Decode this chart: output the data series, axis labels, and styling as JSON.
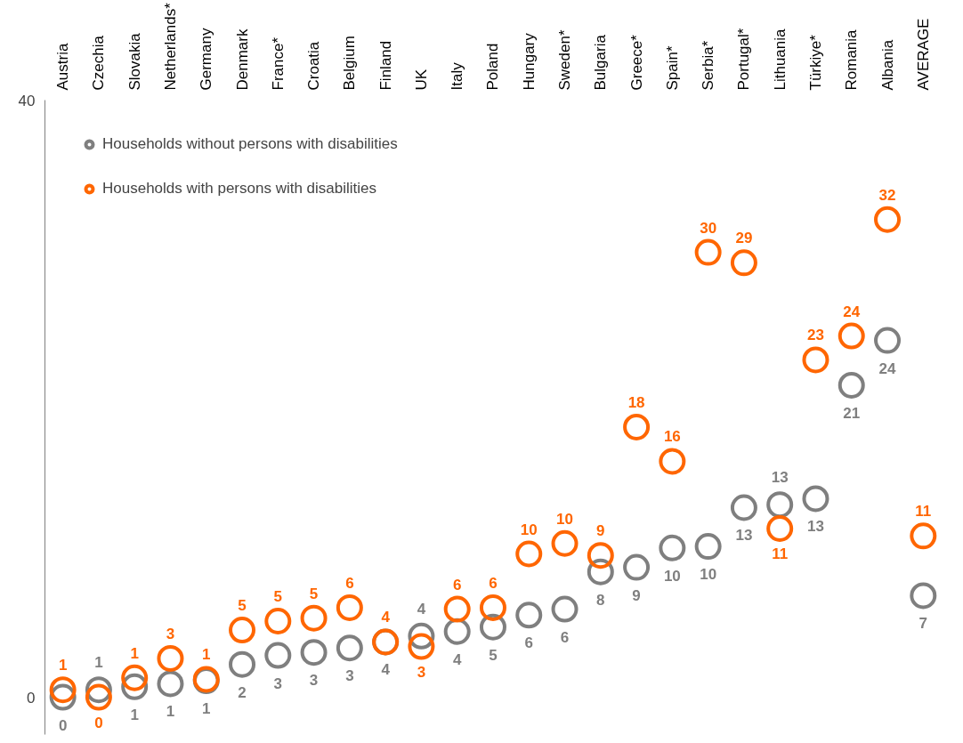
{
  "chart_data": {
    "type": "scatter",
    "categories": [
      "Austria",
      "Czechia",
      "Slovakia",
      "Netherlands*",
      "Germany",
      "Denmark",
      "France*",
      "Croatia",
      "Belgium",
      "Finland",
      "UK",
      "Italy",
      "Poland",
      "Hungary",
      "Sweden*",
      "Bulgaria",
      "Greece*",
      "Spain*",
      "Serbia*",
      "Portugal*",
      "Lithuania",
      "Türkiye*",
      "Romania",
      "Albania",
      "AVERAGE"
    ],
    "series": [
      {
        "name": "Households without persons with disabilities",
        "color": "#7f7f7f",
        "values": [
          0.0,
          0.5,
          0.7,
          0.9,
          1.1,
          2.2,
          2.8,
          3.0,
          3.3,
          3.7,
          4.1,
          4.4,
          4.7,
          5.5,
          5.9,
          8.4,
          8.7,
          10.0,
          10.1,
          12.7,
          12.9,
          13.3,
          20.9,
          23.9,
          6.8
        ],
        "value_labels": [
          "0",
          "1",
          "1",
          "1",
          "1",
          "2",
          "3",
          "3",
          "3",
          "4",
          "4",
          "4",
          "5",
          "6",
          "6",
          "8",
          "9",
          "10",
          "10",
          "13",
          "13",
          "13",
          "21",
          "24",
          "7"
        ]
      },
      {
        "name": "Households with persons with disabilities",
        "color": "#ff6600",
        "values": [
          0.5,
          0.0,
          1.3,
          2.6,
          1.2,
          4.5,
          5.1,
          5.3,
          6.0,
          3.7,
          3.4,
          5.9,
          6.0,
          9.6,
          10.3,
          9.5,
          18.1,
          15.8,
          29.8,
          29.1,
          11.3,
          22.6,
          24.2,
          32.0,
          10.8
        ],
        "value_labels": [
          "1",
          "0",
          "1",
          "3",
          "1",
          "5",
          "5",
          "5",
          "6",
          "4",
          "3",
          "6",
          "6",
          "10",
          "10",
          "9",
          "18",
          "16",
          "30",
          "29",
          "11",
          "23",
          "24",
          "32",
          "11"
        ]
      }
    ],
    "ylim": [
      -2.5,
      40
    ],
    "yticks": [
      0,
      40
    ],
    "grid": false,
    "legend": "top left",
    "marker": "circle"
  }
}
